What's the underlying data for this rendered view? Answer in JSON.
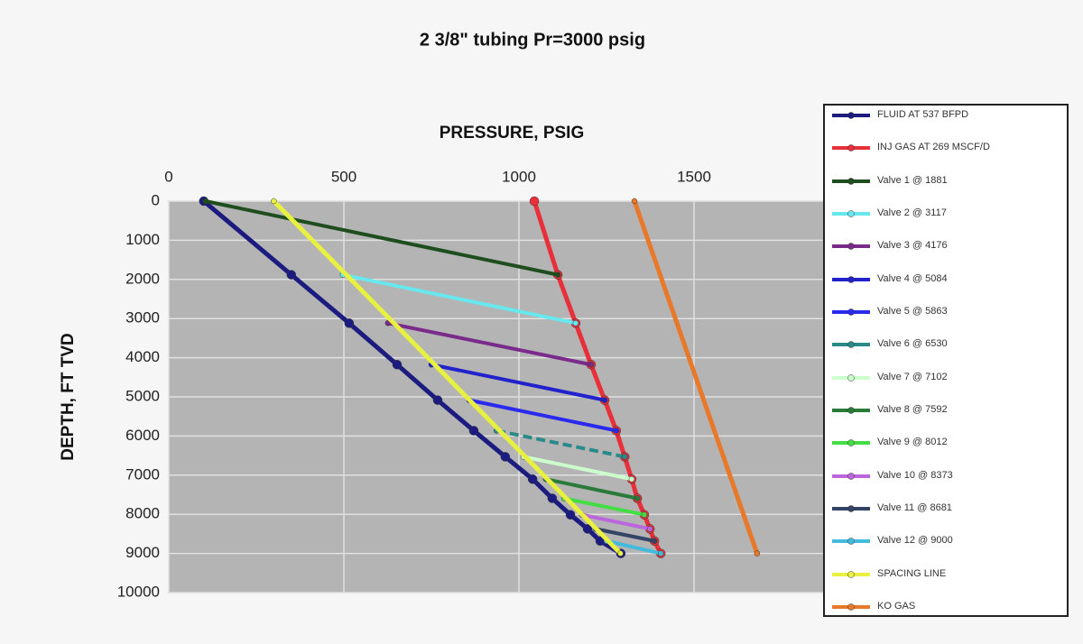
{
  "chart_data": {
    "type": "line",
    "title": "2 3/8\" tubing Pr=3000 psig",
    "x_label": "PRESSURE, PSIG",
    "y_label": "DEPTH, FT TVD",
    "xlim": [
      0,
      2000
    ],
    "xticks": [
      0,
      500,
      1000,
      1500
    ],
    "ylim": [
      0,
      10000
    ],
    "yticks": [
      0,
      1000,
      2000,
      3000,
      4000,
      5000,
      6000,
      7000,
      8000,
      9000,
      10000
    ],
    "y_inverted": true,
    "grid": true,
    "series": [
      {
        "name": "FLUID AT 537 BFPD",
        "color": "#1c1c80",
        "x": [
          100,
          350,
          515,
          652,
          768,
          871,
          961,
          1039,
          1095,
          1147,
          1196,
          1232,
          1291
        ],
        "y": [
          0,
          1881,
          3117,
          4176,
          5084,
          5863,
          6530,
          7102,
          7592,
          8012,
          8373,
          8681,
          9000
        ]
      },
      {
        "name": "INJ GAS AT 269 MSCF/D",
        "color": "#e8303a",
        "x": [
          1044,
          1111,
          1162,
          1206,
          1245,
          1278,
          1302,
          1322,
          1338,
          1358,
          1374,
          1387,
          1405
        ],
        "y": [
          0,
          1881,
          3117,
          4176,
          5084,
          5863,
          6530,
          7102,
          7592,
          8012,
          8373,
          8681,
          9000
        ]
      },
      {
        "name": "Valve 1 @ 1881",
        "color": "#1e4d1e",
        "x": [
          105,
          1111
        ],
        "y": [
          0,
          1881
        ]
      },
      {
        "name": "Valve 2 @ 3117",
        "color": "#66e8ee",
        "x": [
          497,
          1162
        ],
        "y": [
          1881,
          3117
        ]
      },
      {
        "name": "Valve 3 @ 4176",
        "color": "#7a2a8a",
        "x": [
          626,
          1206
        ],
        "y": [
          3117,
          4176
        ]
      },
      {
        "name": "Valve 4 @ 5084",
        "color": "#2222cc",
        "x": [
          750,
          1245
        ],
        "y": [
          4176,
          5084
        ]
      },
      {
        "name": "Valve 5 @ 5863",
        "color": "#2a2aee",
        "x": [
          858,
          1278
        ],
        "y": [
          5084,
          5863
        ]
      },
      {
        "name": "Valve 6 @ 6530",
        "color": "#2a8a8a",
        "x": [
          936,
          1302
        ],
        "y": [
          5863,
          6530
        ]
      },
      {
        "name": "Valve 7 @ 7102",
        "color": "#ccffcc",
        "x": [
          1013,
          1322
        ],
        "y": [
          6530,
          7102
        ]
      },
      {
        "name": "Valve 8 @ 7592",
        "color": "#2a7a3a",
        "x": [
          1077,
          1338
        ],
        "y": [
          7102,
          7592
        ]
      },
      {
        "name": "Valve 9 @ 8012",
        "color": "#44dd44",
        "x": [
          1129,
          1358
        ],
        "y": [
          7592,
          8012
        ]
      },
      {
        "name": "Valve 10 @ 8373",
        "color": "#bb66dd",
        "x": [
          1180,
          1374
        ],
        "y": [
          8012,
          8373
        ]
      },
      {
        "name": "Valve 11 @ 8681",
        "color": "#334466",
        "x": [
          1219,
          1387
        ],
        "y": [
          8373,
          8681
        ]
      },
      {
        "name": "Valve 12 @ 9000",
        "color": "#44bbdd",
        "x": [
          1250,
          1405
        ],
        "y": [
          8681,
          9000
        ]
      },
      {
        "name": "SPACING LINE",
        "color": "#e8f040",
        "x": [
          300,
          1290
        ],
        "y": [
          0,
          9000
        ]
      },
      {
        "name": "KO GAS",
        "color": "#e8782a",
        "x": [
          1330,
          1680
        ],
        "y": [
          0,
          9000
        ]
      }
    ]
  }
}
